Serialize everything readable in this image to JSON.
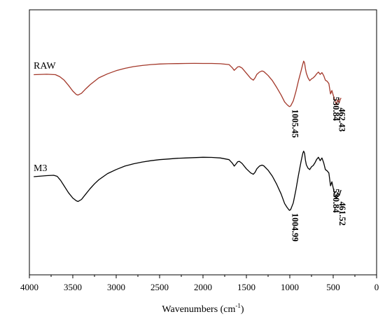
{
  "chart_data": {
    "type": "line",
    "title": "",
    "xlabel": "Wavenumbers (cm",
    "xlabel_sup": "-1",
    "xlabel_close": ")",
    "ylabel": "",
    "xlim": [
      4000,
      0
    ],
    "x_reversed": true,
    "x_ticks": [
      4000,
      3500,
      3000,
      2500,
      2000,
      1500,
      1000,
      500,
      0
    ],
    "x_tick_labels": [
      "4000",
      "3500",
      "3000",
      "2500",
      "2000",
      "1500",
      "1000",
      "500",
      "0"
    ],
    "y_ticks_shown": false,
    "y_units": "arbitrary (stacked, offset traces)",
    "grid": false,
    "legend": "none (inline series labels)",
    "series": [
      {
        "name": "RAW",
        "color": "#a3382a",
        "points": [
          [
            3950,
            0.555
          ],
          [
            3800,
            0.562
          ],
          [
            3700,
            0.555
          ],
          [
            3650,
            0.52
          ],
          [
            3600,
            0.46
          ],
          [
            3550,
            0.37
          ],
          [
            3500,
            0.27
          ],
          [
            3460,
            0.21
          ],
          [
            3440,
            0.2
          ],
          [
            3400,
            0.23
          ],
          [
            3350,
            0.31
          ],
          [
            3300,
            0.38
          ],
          [
            3250,
            0.44
          ],
          [
            3200,
            0.5
          ],
          [
            3100,
            0.57
          ],
          [
            3000,
            0.625
          ],
          [
            2900,
            0.665
          ],
          [
            2800,
            0.695
          ],
          [
            2700,
            0.715
          ],
          [
            2600,
            0.73
          ],
          [
            2500,
            0.74
          ],
          [
            2400,
            0.745
          ],
          [
            2300,
            0.748
          ],
          [
            2200,
            0.75
          ],
          [
            2100,
            0.751
          ],
          [
            2000,
            0.75
          ],
          [
            1900,
            0.75
          ],
          [
            1800,
            0.745
          ],
          [
            1700,
            0.73
          ],
          [
            1660,
            0.67
          ],
          [
            1640,
            0.63
          ],
          [
            1620,
            0.66
          ],
          [
            1600,
            0.69
          ],
          [
            1580,
            0.695
          ],
          [
            1550,
            0.67
          ],
          [
            1500,
            0.58
          ],
          [
            1450,
            0.49
          ],
          [
            1420,
            0.46
          ],
          [
            1400,
            0.5
          ],
          [
            1380,
            0.56
          ],
          [
            1350,
            0.6
          ],
          [
            1320,
            0.62
          ],
          [
            1300,
            0.61
          ],
          [
            1250,
            0.54
          ],
          [
            1200,
            0.45
          ],
          [
            1150,
            0.33
          ],
          [
            1100,
            0.2
          ],
          [
            1060,
            0.08
          ],
          [
            1030,
            0.03
          ],
          [
            1005.45,
            0.0
          ],
          [
            990,
            0.01
          ],
          [
            960,
            0.1
          ],
          [
            930,
            0.26
          ],
          [
            900,
            0.45
          ],
          [
            870,
            0.62
          ],
          [
            850,
            0.74
          ],
          [
            840,
            0.79
          ],
          [
            830,
            0.76
          ],
          [
            820,
            0.66
          ],
          [
            810,
            0.58
          ],
          [
            790,
            0.5
          ],
          [
            770,
            0.45
          ],
          [
            750,
            0.48
          ],
          [
            730,
            0.5
          ],
          [
            710,
            0.53
          ],
          [
            690,
            0.57
          ],
          [
            670,
            0.6
          ],
          [
            650,
            0.56
          ],
          [
            630,
            0.59
          ],
          [
            610,
            0.54
          ],
          [
            590,
            0.46
          ],
          [
            570,
            0.44
          ],
          [
            550,
            0.4
          ],
          [
            530.84,
            0.22
          ],
          [
            515,
            0.28
          ],
          [
            500,
            0.2
          ],
          [
            480,
            0.1
          ],
          [
            462.43,
            0.03
          ],
          [
            450,
            0.12
          ],
          [
            430,
            0.07
          ],
          [
            420,
            0.12
          ],
          [
            410,
            0.15
          ]
        ],
        "peak_labels": [
          "1005.45",
          "530.84",
          "462.43"
        ],
        "peak_positions": [
          1005.45,
          530.84,
          462.43
        ]
      },
      {
        "name": "M3",
        "color": "#000000",
        "points": [
          [
            3950,
            0.495
          ],
          [
            3800,
            0.51
          ],
          [
            3720,
            0.515
          ],
          [
            3680,
            0.5
          ],
          [
            3640,
            0.44
          ],
          [
            3600,
            0.36
          ],
          [
            3550,
            0.26
          ],
          [
            3500,
            0.18
          ],
          [
            3460,
            0.14
          ],
          [
            3440,
            0.13
          ],
          [
            3400,
            0.16
          ],
          [
            3350,
            0.24
          ],
          [
            3300,
            0.32
          ],
          [
            3250,
            0.39
          ],
          [
            3200,
            0.45
          ],
          [
            3100,
            0.54
          ],
          [
            3000,
            0.6
          ],
          [
            2900,
            0.65
          ],
          [
            2800,
            0.685
          ],
          [
            2700,
            0.71
          ],
          [
            2600,
            0.73
          ],
          [
            2500,
            0.745
          ],
          [
            2400,
            0.755
          ],
          [
            2300,
            0.765
          ],
          [
            2200,
            0.77
          ],
          [
            2100,
            0.775
          ],
          [
            2000,
            0.78
          ],
          [
            1900,
            0.778
          ],
          [
            1800,
            0.77
          ],
          [
            1700,
            0.745
          ],
          [
            1660,
            0.69
          ],
          [
            1640,
            0.65
          ],
          [
            1620,
            0.68
          ],
          [
            1600,
            0.715
          ],
          [
            1580,
            0.72
          ],
          [
            1550,
            0.69
          ],
          [
            1500,
            0.61
          ],
          [
            1450,
            0.55
          ],
          [
            1420,
            0.53
          ],
          [
            1400,
            0.56
          ],
          [
            1380,
            0.61
          ],
          [
            1350,
            0.65
          ],
          [
            1320,
            0.665
          ],
          [
            1300,
            0.655
          ],
          [
            1250,
            0.59
          ],
          [
            1200,
            0.5
          ],
          [
            1150,
            0.38
          ],
          [
            1100,
            0.24
          ],
          [
            1060,
            0.1
          ],
          [
            1030,
            0.04
          ],
          [
            1004.99,
            0.0
          ],
          [
            990,
            0.01
          ],
          [
            960,
            0.11
          ],
          [
            930,
            0.3
          ],
          [
            900,
            0.52
          ],
          [
            870,
            0.72
          ],
          [
            850,
            0.84
          ],
          [
            840,
            0.87
          ],
          [
            830,
            0.84
          ],
          [
            820,
            0.74
          ],
          [
            810,
            0.67
          ],
          [
            790,
            0.62
          ],
          [
            770,
            0.6
          ],
          [
            750,
            0.64
          ],
          [
            730,
            0.66
          ],
          [
            710,
            0.7
          ],
          [
            690,
            0.75
          ],
          [
            670,
            0.78
          ],
          [
            650,
            0.73
          ],
          [
            630,
            0.77
          ],
          [
            610,
            0.7
          ],
          [
            590,
            0.6
          ],
          [
            570,
            0.58
          ],
          [
            550,
            0.55
          ],
          [
            530.84,
            0.36
          ],
          [
            515,
            0.42
          ],
          [
            500,
            0.33
          ],
          [
            480,
            0.22
          ],
          [
            461.52,
            0.17
          ],
          [
            450,
            0.26
          ],
          [
            430,
            0.22
          ],
          [
            420,
            0.26
          ],
          [
            410,
            0.3
          ]
        ],
        "peak_labels": [
          "1004.99",
          "530.84",
          "461.52"
        ],
        "peak_positions": [
          1004.99,
          530.84,
          461.52
        ]
      }
    ]
  }
}
